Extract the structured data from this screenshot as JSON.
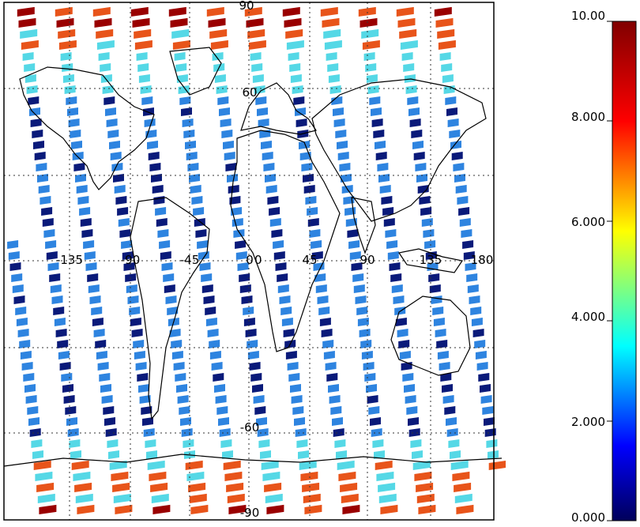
{
  "map": {
    "projection": "cylindrical",
    "lat_labels": [
      "90",
      "60",
      "0",
      "-60",
      "-90"
    ],
    "lon_labels": [
      "-135",
      "-90",
      "-45",
      "0",
      "45",
      "90",
      "135",
      "180"
    ],
    "colors": {
      "gridline": "#333333",
      "coastline": "#000000",
      "frame": "#000000",
      "background": "#ffffff"
    },
    "swath_color_legend": {
      "very_low": "#0a1a7a",
      "low": "#2e84e0",
      "mid": "#55d8e6",
      "high": "#e8541a",
      "highest": "#9a0000"
    }
  },
  "colorbar": {
    "tick_labels": [
      "10.00",
      "8.000",
      "6.000",
      "4.000",
      "2.000",
      "0.000"
    ],
    "min": 0,
    "max": 10,
    "orientation": "vertical",
    "stops": [
      "#00005a",
      "#0000ff",
      "#00ffff",
      "#ffff00",
      "#ff0000",
      "#800000"
    ]
  }
}
